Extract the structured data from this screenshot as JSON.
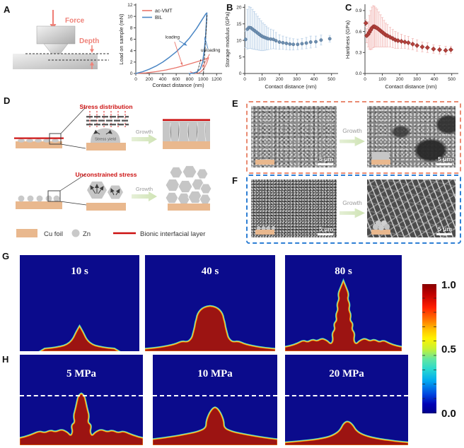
{
  "panel_labels": {
    "a": "A",
    "b": "B",
    "c": "C",
    "d": "D",
    "e": "E",
    "f": "F",
    "g": "G",
    "h": "H"
  },
  "schematic": {
    "force": "Force",
    "depth": "Depth"
  },
  "chart_data": [
    {
      "type": "line",
      "xlabel": "Contact distance (nm)",
      "ylabel": "Load on sample (mN)",
      "xlim": [
        0,
        1260
      ],
      "ylim": [
        0,
        12
      ],
      "xticks": {
        "values": [
          0,
          200,
          400,
          600,
          800,
          1000,
          1200
        ],
        "labels": [
          "0",
          "200",
          "400",
          "600",
          "800",
          "1000",
          "1200"
        ]
      },
      "yticks": {
        "values": [
          0,
          2,
          4,
          6,
          8,
          10,
          12
        ],
        "labels": [
          "0",
          "2",
          "4",
          "6",
          "8",
          "10",
          "12"
        ]
      },
      "legend": [
        {
          "label": "ac-VMT",
          "color": "#e9756b"
        },
        {
          "label": "BIL",
          "color": "#4a86c4"
        }
      ],
      "series": [
        {
          "name": "ac-VMT loading",
          "color": "#e9756b",
          "width": 1.3,
          "points": [
            [
              0,
              0
            ],
            [
              150,
              0.1
            ],
            [
              300,
              0.32
            ],
            [
              450,
              0.62
            ],
            [
              600,
              1.02
            ],
            [
              750,
              1.5
            ],
            [
              900,
              2.02
            ],
            [
              1000,
              2.38
            ],
            [
              1080,
              2.75
            ]
          ]
        },
        {
          "name": "ac-VMT unloading",
          "color": "#e9756b",
          "width": 1.1,
          "points": [
            [
              1080,
              2.75
            ],
            [
              1055,
              1.9
            ],
            [
              1025,
              1.15
            ],
            [
              995,
              0.65
            ],
            [
              965,
              0.3
            ],
            [
              935,
              0.1
            ],
            [
              905,
              0
            ],
            [
              840,
              0.15
            ],
            [
              810,
              0.3
            ]
          ]
        },
        {
          "name": "BIL loading",
          "color": "#4a86c4",
          "width": 1.5,
          "points": [
            [
              0,
              0
            ],
            [
              100,
              0.3
            ],
            [
              200,
              0.75
            ],
            [
              300,
              1.3
            ],
            [
              400,
              2.0
            ],
            [
              500,
              2.85
            ],
            [
              600,
              3.8
            ],
            [
              700,
              4.95
            ],
            [
              800,
              6.25
            ],
            [
              900,
              7.85
            ],
            [
              980,
              9.35
            ],
            [
              1040,
              10.45
            ],
            [
              1055,
              10.6
            ]
          ]
        },
        {
          "name": "BIL unloading",
          "color": "#4a86c4",
          "width": 1.5,
          "points": [
            [
              1055,
              10.6
            ],
            [
              1048,
              9.0
            ],
            [
              1036,
              6.5
            ],
            [
              1016,
              4.0
            ],
            [
              992,
              2.0
            ],
            [
              958,
              0.8
            ],
            [
              905,
              0.25
            ],
            [
              845,
              0.06
            ],
            [
              795,
              0
            ]
          ]
        },
        {
          "name": "stiffness fit BIL",
          "color": "#222222",
          "width": 0.9,
          "dash": "3,2",
          "points": [
            [
              1004,
              0
            ],
            [
              1058,
              10.2
            ]
          ]
        },
        {
          "name": "stiffness fit ac-VMT",
          "color": "#222222",
          "width": 0.8,
          "dash": "2.5,2",
          "points": [
            [
              908,
              0
            ],
            [
              968,
              2.6
            ]
          ]
        }
      ],
      "annotations": [
        {
          "text": "loading",
          "x": 545,
          "y": 6.1
        },
        {
          "text": "unloading",
          "x": 1110,
          "y": 3.85
        }
      ],
      "arrows": [
        {
          "x1": 575,
          "y1": 5.55,
          "x2": 690,
          "y2": 1.45,
          "color": "#e9756b"
        },
        {
          "x1": 640,
          "y1": 5.75,
          "x2": 758,
          "y2": 4.9,
          "color": "#4a86c4"
        },
        {
          "x1": 1070,
          "y1": 4.35,
          "x2": 1024,
          "y2": 6.4,
          "color": "#4a86c4"
        },
        {
          "x1": 1095,
          "y1": 3.4,
          "x2": 988,
          "y2": 1.05,
          "color": "#e9756b"
        }
      ]
    },
    {
      "type": "scatter",
      "marker": "circle",
      "marker_color": "#6e8fb0",
      "marker_edge": "#4d6e91",
      "err_color": "#bcd2e8",
      "xlabel": "Contact distance (nm)",
      "ylabel": "Storage modulus (GPa)",
      "xlim": [
        0,
        530
      ],
      "ylim": [
        0,
        20.5
      ],
      "xticks": {
        "values": [
          0,
          100,
          200,
          300,
          400,
          500
        ],
        "labels": [
          "0",
          "100",
          "200",
          "300",
          "400",
          "500"
        ]
      },
      "yticks": {
        "values": [
          0,
          5,
          10,
          15,
          20
        ],
        "labels": [
          "0",
          "5",
          "10",
          "15",
          "20"
        ]
      },
      "points": [
        [
          5,
          10.3,
          2.5
        ],
        [
          15,
          13.4,
          6.0
        ],
        [
          25,
          13.9,
          6.3
        ],
        [
          35,
          13.8,
          6.2
        ],
        [
          45,
          13.4,
          6.0
        ],
        [
          55,
          13.0,
          5.7
        ],
        [
          65,
          12.6,
          5.4
        ],
        [
          75,
          12.2,
          5.1
        ],
        [
          85,
          11.8,
          4.8
        ],
        [
          95,
          11.4,
          4.5
        ],
        [
          105,
          11.1,
          4.2
        ],
        [
          115,
          10.9,
          3.9
        ],
        [
          125,
          10.7,
          3.6
        ],
        [
          135,
          10.5,
          3.3
        ],
        [
          150,
          10.4,
          3.0
        ],
        [
          165,
          10.3,
          2.8
        ],
        [
          180,
          9.9,
          2.5
        ],
        [
          200,
          9.5,
          2.2
        ],
        [
          220,
          9.3,
          2.0
        ],
        [
          240,
          9.1,
          1.9
        ],
        [
          260,
          8.9,
          1.8
        ],
        [
          280,
          8.8,
          1.7
        ],
        [
          305,
          8.8,
          1.6
        ],
        [
          330,
          9.0,
          1.6
        ],
        [
          355,
          9.2,
          1.7
        ],
        [
          380,
          9.5,
          1.8
        ],
        [
          410,
          9.6,
          1.7
        ],
        [
          440,
          10.1,
          1.5
        ],
        [
          490,
          10.5,
          1.0
        ]
      ]
    },
    {
      "type": "scatter",
      "marker": "diamond",
      "marker_color": "#b2413c",
      "marker_edge": "#8c2b27",
      "err_color": "#f3bcba",
      "xlabel": "Contact distance (nm)",
      "ylabel": "Hardness (GPa)",
      "xlim": [
        0,
        530
      ],
      "ylim": [
        0,
        0.97
      ],
      "xticks": {
        "values": [
          0,
          100,
          200,
          300,
          400,
          500
        ],
        "labels": [
          "0",
          "100",
          "200",
          "300",
          "400",
          "500"
        ]
      },
      "yticks": {
        "values": [
          0,
          0.3,
          0.6,
          0.9
        ],
        "labels": [
          "0.0",
          "0.3",
          "0.6",
          "0.9"
        ]
      },
      "points": [
        [
          5,
          0.72,
          0.05
        ],
        [
          10,
          0.54,
          0.1
        ],
        [
          18,
          0.56,
          0.18
        ],
        [
          25,
          0.59,
          0.24
        ],
        [
          32,
          0.62,
          0.28
        ],
        [
          40,
          0.65,
          0.3
        ],
        [
          48,
          0.67,
          0.3
        ],
        [
          55,
          0.67,
          0.29
        ],
        [
          62,
          0.66,
          0.28
        ],
        [
          70,
          0.65,
          0.27
        ],
        [
          80,
          0.63,
          0.25
        ],
        [
          90,
          0.61,
          0.23
        ],
        [
          100,
          0.59,
          0.21
        ],
        [
          110,
          0.57,
          0.19
        ],
        [
          120,
          0.55,
          0.17
        ],
        [
          130,
          0.54,
          0.16
        ],
        [
          145,
          0.52,
          0.14
        ],
        [
          160,
          0.5,
          0.13
        ],
        [
          175,
          0.48,
          0.12
        ],
        [
          190,
          0.47,
          0.11
        ],
        [
          210,
          0.46,
          0.1
        ],
        [
          230,
          0.45,
          0.09
        ],
        [
          250,
          0.44,
          0.09
        ],
        [
          275,
          0.42,
          0.08
        ],
        [
          300,
          0.4,
          0.08
        ],
        [
          330,
          0.38,
          0.07
        ],
        [
          360,
          0.37,
          0.07
        ],
        [
          395,
          0.35,
          0.06
        ],
        [
          430,
          0.34,
          0.06
        ],
        [
          465,
          0.33,
          0.06
        ],
        [
          495,
          0.34,
          0.05
        ]
      ]
    }
  ],
  "diagram": {
    "stress_distribution": "Stress distribution",
    "stress_yield": "Stress yield",
    "unconstrained_stress": "Unconstrained stress",
    "growth": "Growth",
    "legend": {
      "cu_foil": "Cu foil",
      "zn": "Zn",
      "bionic": "Bionic interfacial layer"
    }
  },
  "sem": {
    "growth": "Growth",
    "scale": "5 μm"
  },
  "sim": {
    "g_labels": [
      "10 s",
      "40 s",
      "80 s"
    ],
    "h_labels": [
      "5 MPa",
      "10 MPa",
      "20 MPa"
    ],
    "colorbar_labels": [
      "1.0",
      "0.5",
      "0.0"
    ]
  },
  "colors": {
    "accent_salmon": "#ef8279",
    "acvmt_line": "#e9756b",
    "bil_line": "#4a86c4",
    "cu_foil": "#e9b88e",
    "zn_gray": "#c9c9c9",
    "bionic_red": "#cc1111",
    "e_border": "#e98b72",
    "f_border": "#2e7fd4",
    "sim_bg": "#0b0b8c",
    "dendrite": "#9c1412"
  }
}
